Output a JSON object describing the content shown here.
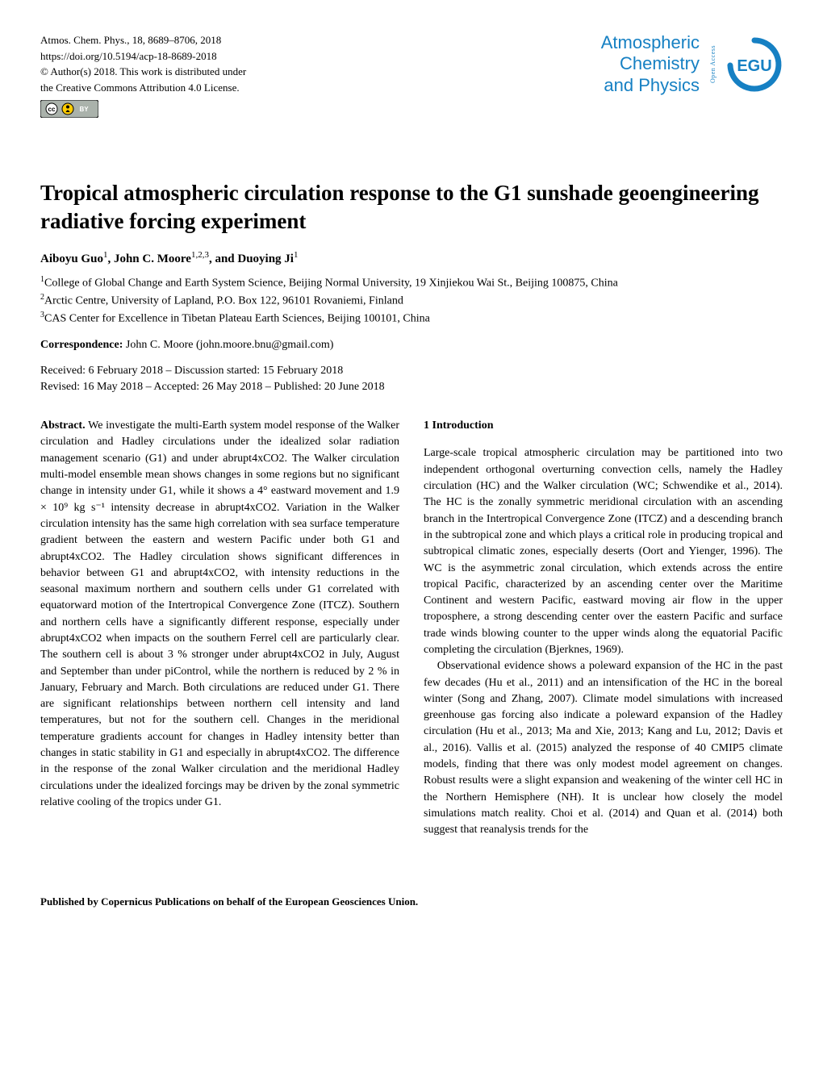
{
  "meta": {
    "journal_ref": "Atmos. Chem. Phys., 18, 8689–8706, 2018",
    "doi": "https://doi.org/10.5194/acp-18-8689-2018",
    "copyright": "© Author(s) 2018. This work is distributed under",
    "license_line": "the Creative Commons Attribution 4.0 License.",
    "cc_badge_bg": "#aab2ab",
    "cc_badge_accent": "#ffcc00"
  },
  "journal_logo": {
    "line1": "Atmospheric",
    "line2": "Chemistry",
    "line3": "and Physics",
    "open_access": "Open Access",
    "egu_text": "EGU",
    "egu_color": "#1680c3",
    "text_color": "#1680c3"
  },
  "title": "Tropical atmospheric circulation response to the G1 sunshade geoengineering radiative forcing experiment",
  "authors_html": "Aiboyu Guo<sup>1</sup>, John C. Moore<sup>1,2,3</sup>, and Duoying Ji<sup>1</sup>",
  "affiliations": {
    "a1": "<sup>1</sup>College of Global Change and Earth System Science, Beijing Normal University, 19 Xinjiekou Wai St., Beijing 100875, China",
    "a2": "<sup>2</sup>Arctic Centre, University of Lapland, P.O. Box 122, 96101 Rovaniemi, Finland",
    "a3": "<sup>3</sup>CAS Center for Excellence in Tibetan Plateau Earth Sciences, Beijing 100101, China"
  },
  "correspondence": {
    "label": "Correspondence:",
    "text": " John C. Moore (john.moore.bnu@gmail.com)"
  },
  "dates": {
    "line1": "Received: 6 February 2018 – Discussion started: 15 February 2018",
    "line2": "Revised: 16 May 2018 – Accepted: 26 May 2018 – Published: 20 June 2018"
  },
  "abstract": {
    "label": "Abstract.",
    "text": " We investigate the multi-Earth system model response of the Walker circulation and Hadley circulations under the idealized solar radiation management scenario (G1) and under abrupt4xCO2. The Walker circulation multi-model ensemble mean shows changes in some regions but no significant change in intensity under G1, while it shows a 4° eastward movement and 1.9 × 10⁹ kg s⁻¹ intensity decrease in abrupt4xCO2. Variation in the Walker circulation intensity has the same high correlation with sea surface temperature gradient between the eastern and western Pacific under both G1 and abrupt4xCO2. The Hadley circulation shows significant differences in behavior between G1 and abrupt4xCO2, with intensity reductions in the seasonal maximum northern and southern cells under G1 correlated with equatorward motion of the Intertropical Convergence Zone (ITCZ). Southern and northern cells have a significantly different response, especially under abrupt4xCO2 when impacts on the southern Ferrel cell are particularly clear. The southern cell is about 3 % stronger under abrupt4xCO2 in July, August and September than under piControl, while the northern is reduced by 2 % in January, February and March. Both circulations are reduced under G1. There are significant relationships between northern cell intensity and land temperatures, but not for the southern cell. Changes in the meridional temperature gradients account for changes in Hadley intensity better than changes in static stability in G1 and especially in abrupt4xCO2. The difference in the response of the zonal Walker circulation and the meridional Hadley circulations under the idealized forcings may be driven by the zonal symmetric relative cooling of the tropics under G1."
  },
  "intro": {
    "heading": "1   Introduction",
    "p1": "Large-scale tropical atmospheric circulation may be partitioned into two independent orthogonal overturning convection cells, namely the Hadley circulation (HC) and the Walker circulation (WC; Schwendike et al., 2014). The HC is the zonally symmetric meridional circulation with an ascending branch in the Intertropical Convergence Zone (ITCZ) and a descending branch in the subtropical zone and which plays a critical role in producing tropical and subtropical climatic zones, especially deserts (Oort and Yienger, 1996). The WC is the asymmetric zonal circulation, which extends across the entire tropical Pacific, characterized by an ascending center over the Maritime Continent and western Pacific, eastward moving air flow in the upper troposphere, a strong descending center over the eastern Pacific and surface trade winds blowing counter to the upper winds along the equatorial Pacific completing the circulation (Bjerknes, 1969).",
    "p2": "Observational evidence shows a poleward expansion of the HC in the past few decades (Hu et al., 2011) and an intensification of the HC in the boreal winter (Song and Zhang, 2007). Climate model simulations with increased greenhouse gas forcing also indicate a poleward expansion of the Hadley circulation (Hu et al., 2013; Ma and Xie, 2013; Kang and Lu, 2012; Davis et al., 2016). Vallis et al. (2015) analyzed the response of 40 CMIP5 climate models, finding that there was only modest model agreement on changes. Robust results were a slight expansion and weakening of the winter cell HC in the Northern Hemisphere (NH). It is unclear how closely the model simulations match reality. Choi et al. (2014) and Quan et al. (2014) both suggest that reanalysis trends for the"
  },
  "footer": "Published by Copernicus Publications on behalf of the European Geosciences Union.",
  "colors": {
    "text": "#000000",
    "background": "#ffffff",
    "link_blue": "#1680c3"
  },
  "fonts": {
    "body_family": "Georgia, 'Times New Roman', serif",
    "body_size_pt": 10.5,
    "title_size_pt": 20,
    "journal_logo_family": "Arial, Helvetica, sans-serif"
  }
}
